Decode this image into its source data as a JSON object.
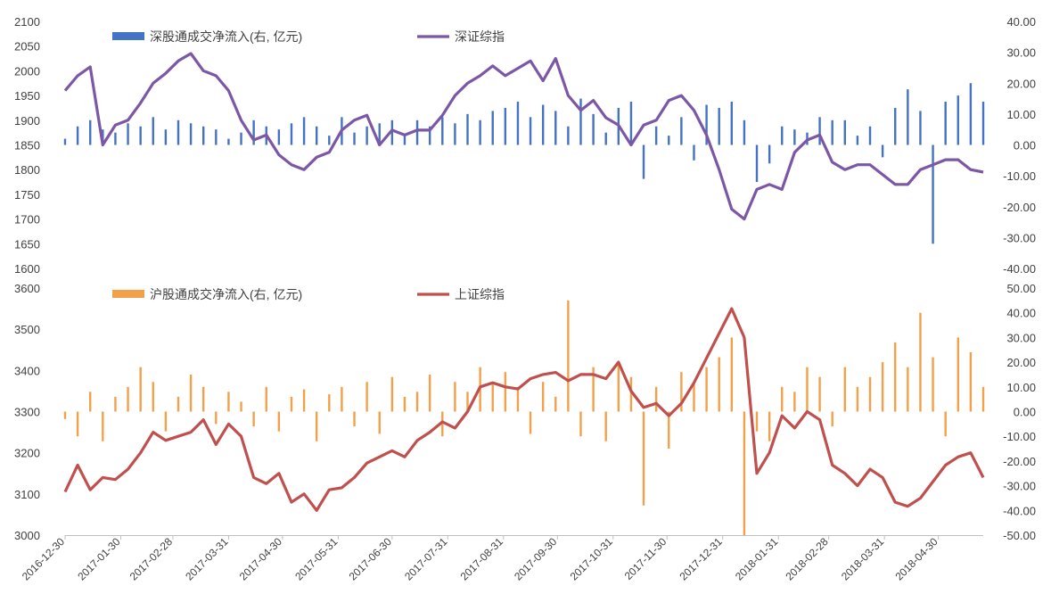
{
  "colors": {
    "sz_bar": "#4472c4",
    "sz_line": "#7b57a6",
    "sh_bar": "#f2a04a",
    "sh_line": "#c0504d",
    "axis_text": "#404040",
    "axis_line": "#bfbfbf"
  },
  "chart_data": [
    {
      "type": "bar",
      "title": "",
      "legend": [
        "深股通成交净流入(右, 亿元)",
        "深证综指"
      ],
      "legend_position": "top-left",
      "grid": false,
      "y_left": {
        "min": 1600,
        "max": 2100,
        "step": 50,
        "ticks": [
          "2100",
          "2050",
          "2000",
          "1950",
          "1900",
          "1850",
          "1800",
          "1750",
          "1700",
          "1650",
          "1600"
        ]
      },
      "y_right": {
        "min": -40,
        "max": 40,
        "step": 10,
        "ticks": [
          "40.00",
          "30.00",
          "20.00",
          "10.00",
          "0.00",
          "-10.00",
          "-20.00",
          "-30.00",
          "-40.00"
        ]
      },
      "series": [
        {
          "name": "深股通成交净流入(右, 亿元)",
          "type": "bar",
          "axis": "right",
          "x": [
            "2016-12-30",
            "2017-01-06",
            "2017-01-13",
            "2017-01-20",
            "2017-01-27",
            "2017-02-03",
            "2017-02-10",
            "2017-02-17",
            "2017-02-24",
            "2017-03-03",
            "2017-03-10",
            "2017-03-17",
            "2017-03-24",
            "2017-03-31",
            "2017-04-07",
            "2017-04-14",
            "2017-04-21",
            "2017-04-28",
            "2017-05-05",
            "2017-05-12",
            "2017-05-19",
            "2017-05-26",
            "2017-06-02",
            "2017-06-09",
            "2017-06-16",
            "2017-06-23",
            "2017-06-30",
            "2017-07-07",
            "2017-07-14",
            "2017-07-21",
            "2017-07-28",
            "2017-08-04",
            "2017-08-11",
            "2017-08-18",
            "2017-08-25",
            "2017-09-01",
            "2017-09-08",
            "2017-09-15",
            "2017-09-22",
            "2017-09-29",
            "2017-10-06",
            "2017-10-13",
            "2017-10-20",
            "2017-10-27",
            "2017-11-03",
            "2017-11-10",
            "2017-11-17",
            "2017-11-24",
            "2017-12-01",
            "2017-12-08",
            "2017-12-15",
            "2017-12-22",
            "2017-12-29",
            "2018-01-05",
            "2018-01-12",
            "2018-01-19",
            "2018-01-26",
            "2018-02-02",
            "2018-02-09",
            "2018-02-16",
            "2018-02-23",
            "2018-03-02",
            "2018-03-09",
            "2018-03-16",
            "2018-03-23",
            "2018-03-30",
            "2018-04-06",
            "2018-04-13",
            "2018-04-20",
            "2018-04-27",
            "2018-05-04",
            "2018-05-11",
            "2018-05-18",
            "2018-05-25"
          ],
          "values": [
            2,
            6,
            8,
            5,
            4,
            7,
            6,
            9,
            5,
            8,
            7,
            6,
            5,
            2,
            4,
            8,
            6,
            5,
            7,
            9,
            6,
            3,
            9,
            4,
            6,
            7,
            8,
            3,
            8,
            6,
            9,
            7,
            10,
            8,
            11,
            12,
            14,
            9,
            13,
            11,
            6,
            15,
            10,
            4,
            12,
            14,
            -11,
            6,
            3,
            9,
            -5,
            13,
            12,
            14,
            8,
            -12,
            -6,
            6,
            5,
            4,
            9,
            8,
            8,
            3,
            6,
            -4,
            12,
            18,
            11,
            -32,
            14,
            16,
            20,
            14
          ]
        },
        {
          "name": "深证综指",
          "type": "line",
          "axis": "left",
          "x": [
            "2016-12-30",
            "2017-01-06",
            "2017-01-13",
            "2017-01-20",
            "2017-01-27",
            "2017-02-03",
            "2017-02-10",
            "2017-02-17",
            "2017-02-24",
            "2017-03-03",
            "2017-03-10",
            "2017-03-17",
            "2017-03-24",
            "2017-03-31",
            "2017-04-07",
            "2017-04-14",
            "2017-04-21",
            "2017-04-28",
            "2017-05-05",
            "2017-05-12",
            "2017-05-19",
            "2017-05-26",
            "2017-06-02",
            "2017-06-09",
            "2017-06-16",
            "2017-06-23",
            "2017-06-30",
            "2017-07-07",
            "2017-07-14",
            "2017-07-21",
            "2017-07-28",
            "2017-08-04",
            "2017-08-11",
            "2017-08-18",
            "2017-08-25",
            "2017-09-01",
            "2017-09-08",
            "2017-09-15",
            "2017-09-22",
            "2017-09-29",
            "2017-10-06",
            "2017-10-13",
            "2017-10-20",
            "2017-10-27",
            "2017-11-03",
            "2017-11-10",
            "2017-11-17",
            "2017-11-24",
            "2017-12-01",
            "2017-12-08",
            "2017-12-15",
            "2017-12-22",
            "2017-12-29",
            "2018-01-05",
            "2018-01-12",
            "2018-01-19",
            "2018-01-26",
            "2018-02-02",
            "2018-02-09",
            "2018-02-16",
            "2018-02-23",
            "2018-03-02",
            "2018-03-09",
            "2018-03-16",
            "2018-03-23",
            "2018-03-30",
            "2018-04-06",
            "2018-04-13",
            "2018-04-20",
            "2018-04-27",
            "2018-05-04",
            "2018-05-11",
            "2018-05-18",
            "2018-05-25"
          ],
          "values": [
            1960,
            1990,
            2008,
            1850,
            1890,
            1900,
            1935,
            1975,
            1995,
            2020,
            2035,
            2000,
            1990,
            1960,
            1900,
            1860,
            1870,
            1830,
            1810,
            1800,
            1825,
            1835,
            1880,
            1900,
            1910,
            1850,
            1880,
            1870,
            1880,
            1880,
            1910,
            1950,
            1975,
            1990,
            2010,
            1990,
            2005,
            2020,
            1980,
            2025,
            1950,
            1920,
            1940,
            1905,
            1890,
            1850,
            1890,
            1900,
            1940,
            1950,
            1920,
            1870,
            1800,
            1720,
            1700,
            1760,
            1770,
            1760,
            1835,
            1860,
            1870,
            1815,
            1800,
            1810,
            1810,
            1790,
            1770,
            1770,
            1800,
            1810,
            1820,
            1820,
            1800,
            1795
          ]
        }
      ]
    },
    {
      "type": "bar",
      "title": "",
      "legend": [
        "沪股通成交净流入(右, 亿元)",
        "上证综指"
      ],
      "legend_position": "top-left",
      "grid": false,
      "y_left": {
        "min": 3000,
        "max": 3600,
        "step": 100,
        "ticks": [
          "3600",
          "3500",
          "3400",
          "3300",
          "3200",
          "3100",
          "3000"
        ]
      },
      "y_right": {
        "min": -50,
        "max": 50,
        "step": 10,
        "ticks": [
          "50.00",
          "40.00",
          "30.00",
          "20.00",
          "10.00",
          "0.00",
          "-10.00",
          "-20.00",
          "-30.00",
          "-40.00",
          "-50.00"
        ]
      },
      "x_ticks": [
        "2016-12-30",
        "2017-01-30",
        "2017-02-28",
        "2017-03-31",
        "2017-04-30",
        "2017-05-31",
        "2017-06-30",
        "2017-07-31",
        "2017-08-31",
        "2017-09-30",
        "2017-10-31",
        "2017-11-30",
        "2017-12-31",
        "2018-01-31",
        "2018-02-28",
        "2018-03-31",
        "2018-04-30"
      ],
      "series": [
        {
          "name": "沪股通成交净流入(右, 亿元)",
          "type": "bar",
          "axis": "right",
          "x": [
            "2016-12-30",
            "2017-01-06",
            "2017-01-13",
            "2017-01-20",
            "2017-01-27",
            "2017-02-03",
            "2017-02-10",
            "2017-02-17",
            "2017-02-24",
            "2017-03-03",
            "2017-03-10",
            "2017-03-17",
            "2017-03-24",
            "2017-03-31",
            "2017-04-07",
            "2017-04-14",
            "2017-04-21",
            "2017-04-28",
            "2017-05-05",
            "2017-05-12",
            "2017-05-19",
            "2017-05-26",
            "2017-06-02",
            "2017-06-09",
            "2017-06-16",
            "2017-06-23",
            "2017-06-30",
            "2017-07-07",
            "2017-07-14",
            "2017-07-21",
            "2017-07-28",
            "2017-08-04",
            "2017-08-11",
            "2017-08-18",
            "2017-08-25",
            "2017-09-01",
            "2017-09-08",
            "2017-09-15",
            "2017-09-22",
            "2017-09-29",
            "2017-10-06",
            "2017-10-13",
            "2017-10-20",
            "2017-10-27",
            "2017-11-03",
            "2017-11-10",
            "2017-11-17",
            "2017-11-24",
            "2017-12-01",
            "2017-12-08",
            "2017-12-15",
            "2017-12-22",
            "2017-12-29",
            "2018-01-05",
            "2018-01-12",
            "2018-01-19",
            "2018-01-26",
            "2018-02-02",
            "2018-02-09",
            "2018-02-16",
            "2018-02-23",
            "2018-03-02",
            "2018-03-09",
            "2018-03-16",
            "2018-03-23",
            "2018-03-30",
            "2018-04-06",
            "2018-04-13",
            "2018-04-20",
            "2018-04-27",
            "2018-05-04",
            "2018-05-11",
            "2018-05-18",
            "2018-05-25"
          ],
          "values": [
            -3,
            -10,
            8,
            -12,
            6,
            10,
            18,
            12,
            -8,
            6,
            15,
            10,
            -5,
            8,
            4,
            -6,
            10,
            -8,
            6,
            9,
            -12,
            7,
            10,
            -6,
            12,
            -9,
            14,
            6,
            8,
            15,
            -10,
            12,
            8,
            18,
            11,
            16,
            10,
            -9,
            12,
            6,
            45,
            -10,
            18,
            -12,
            20,
            14,
            -38,
            10,
            -15,
            16,
            12,
            18,
            22,
            30,
            -50,
            -8,
            -12,
            10,
            8,
            18,
            14,
            -6,
            18,
            10,
            14,
            20,
            28,
            18,
            40,
            22,
            -10,
            30,
            24,
            10
          ]
        },
        {
          "name": "上证综指",
          "type": "line",
          "axis": "left",
          "x": [
            "2016-12-30",
            "2017-01-06",
            "2017-01-13",
            "2017-01-20",
            "2017-01-27",
            "2017-02-03",
            "2017-02-10",
            "2017-02-17",
            "2017-02-24",
            "2017-03-03",
            "2017-03-10",
            "2017-03-17",
            "2017-03-24",
            "2017-03-31",
            "2017-04-07",
            "2017-04-14",
            "2017-04-21",
            "2017-04-28",
            "2017-05-05",
            "2017-05-12",
            "2017-05-19",
            "2017-05-26",
            "2017-06-02",
            "2017-06-09",
            "2017-06-16",
            "2017-06-23",
            "2017-06-30",
            "2017-07-07",
            "2017-07-14",
            "2017-07-21",
            "2017-07-28",
            "2017-08-04",
            "2017-08-11",
            "2017-08-18",
            "2017-08-25",
            "2017-09-01",
            "2017-09-08",
            "2017-09-15",
            "2017-09-22",
            "2017-09-29",
            "2017-10-06",
            "2017-10-13",
            "2017-10-20",
            "2017-10-27",
            "2017-11-03",
            "2017-11-10",
            "2017-11-17",
            "2017-11-24",
            "2017-12-01",
            "2017-12-08",
            "2017-12-15",
            "2017-12-22",
            "2017-12-29",
            "2018-01-05",
            "2018-01-12",
            "2018-01-19",
            "2018-01-26",
            "2018-02-02",
            "2018-02-09",
            "2018-02-16",
            "2018-02-23",
            "2018-03-02",
            "2018-03-09",
            "2018-03-16",
            "2018-03-23",
            "2018-03-30",
            "2018-04-06",
            "2018-04-13",
            "2018-04-20",
            "2018-04-27",
            "2018-05-04",
            "2018-05-11",
            "2018-05-18",
            "2018-05-25"
          ],
          "values": [
            3105,
            3170,
            3110,
            3140,
            3135,
            3160,
            3200,
            3250,
            3230,
            3240,
            3250,
            3280,
            3220,
            3270,
            3240,
            3140,
            3125,
            3150,
            3080,
            3100,
            3060,
            3110,
            3115,
            3140,
            3175,
            3190,
            3205,
            3190,
            3230,
            3250,
            3275,
            3260,
            3300,
            3360,
            3370,
            3360,
            3355,
            3380,
            3390,
            3395,
            3375,
            3390,
            3390,
            3380,
            3420,
            3350,
            3310,
            3320,
            3290,
            3320,
            3370,
            3430,
            3490,
            3550,
            3480,
            3150,
            3200,
            3290,
            3260,
            3300,
            3280,
            3170,
            3150,
            3120,
            3160,
            3140,
            3080,
            3070,
            3090,
            3130,
            3170,
            3190,
            3200,
            3140
          ]
        }
      ]
    }
  ]
}
